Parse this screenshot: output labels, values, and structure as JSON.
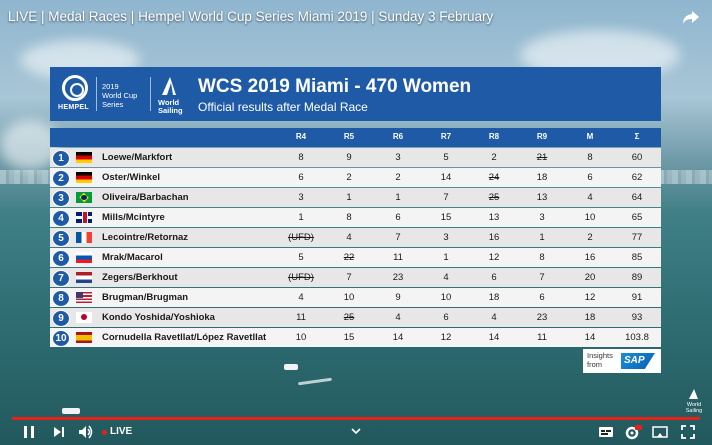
{
  "video": {
    "title": "LIVE | Medal Races | Hempel World Cup Series Miami 2019 | Sunday 3 February"
  },
  "header": {
    "hempel_label": "HEMPEL",
    "worldcup_line1": "2019",
    "worldcup_line2": "World Cup",
    "worldcup_line3": "Series",
    "worldsailing_line1": "World",
    "worldsailing_line2": "Sailing",
    "title": "WCS 2019 Miami - 470 Women",
    "subtitle": "Official results after Medal Race"
  },
  "table": {
    "columns": [
      "R4",
      "R5",
      "R6",
      "R7",
      "R8",
      "R9",
      "M",
      "Σ"
    ],
    "rows": [
      {
        "rank": "1",
        "flag": "de",
        "name": "Loewe/Markfort",
        "cells": [
          {
            "v": "8"
          },
          {
            "v": "9"
          },
          {
            "v": "3"
          },
          {
            "v": "5"
          },
          {
            "v": "2"
          },
          {
            "v": "21",
            "struck": true
          },
          {
            "v": "8"
          },
          {
            "v": "60"
          }
        ]
      },
      {
        "rank": "2",
        "flag": "de",
        "name": "Oster/Winkel",
        "cells": [
          {
            "v": "6"
          },
          {
            "v": "2"
          },
          {
            "v": "2"
          },
          {
            "v": "14"
          },
          {
            "v": "24",
            "struck": true
          },
          {
            "v": "18"
          },
          {
            "v": "6"
          },
          {
            "v": "62"
          }
        ]
      },
      {
        "rank": "3",
        "flag": "br",
        "name": "Oliveira/Barbachan",
        "cells": [
          {
            "v": "3"
          },
          {
            "v": "1"
          },
          {
            "v": "1"
          },
          {
            "v": "7"
          },
          {
            "v": "25",
            "struck": true
          },
          {
            "v": "13"
          },
          {
            "v": "4"
          },
          {
            "v": "64"
          }
        ]
      },
      {
        "rank": "4",
        "flag": "gb",
        "name": "Mills/Mcintyre",
        "cells": [
          {
            "v": "1"
          },
          {
            "v": "8"
          },
          {
            "v": "6"
          },
          {
            "v": "15"
          },
          {
            "v": "13"
          },
          {
            "v": "3"
          },
          {
            "v": "10"
          },
          {
            "v": "65"
          }
        ]
      },
      {
        "rank": "5",
        "flag": "fr",
        "name": "Lecointre/Retornaz",
        "cells": [
          {
            "v": "(UFD)",
            "struck": true
          },
          {
            "v": "4"
          },
          {
            "v": "7"
          },
          {
            "v": "3"
          },
          {
            "v": "16"
          },
          {
            "v": "1"
          },
          {
            "v": "2"
          },
          {
            "v": "77"
          }
        ]
      },
      {
        "rank": "6",
        "flag": "si",
        "name": "Mrak/Macarol",
        "cells": [
          {
            "v": "5"
          },
          {
            "v": "22",
            "struck": true
          },
          {
            "v": "11"
          },
          {
            "v": "1"
          },
          {
            "v": "12"
          },
          {
            "v": "8"
          },
          {
            "v": "16"
          },
          {
            "v": "85"
          }
        ]
      },
      {
        "rank": "7",
        "flag": "nl",
        "name": "Zegers/Berkhout",
        "cells": [
          {
            "v": "(UFD)",
            "struck": true
          },
          {
            "v": "7"
          },
          {
            "v": "23"
          },
          {
            "v": "4"
          },
          {
            "v": "6"
          },
          {
            "v": "7"
          },
          {
            "v": "20"
          },
          {
            "v": "89"
          }
        ]
      },
      {
        "rank": "8",
        "flag": "us",
        "name": "Brugman/Brugman",
        "cells": [
          {
            "v": "4"
          },
          {
            "v": "10"
          },
          {
            "v": "9"
          },
          {
            "v": "10"
          },
          {
            "v": "18"
          },
          {
            "v": "6"
          },
          {
            "v": "12"
          },
          {
            "v": "91"
          }
        ]
      },
      {
        "rank": "9",
        "flag": "jp",
        "name": "Kondo Yoshida/Yoshioka",
        "cells": [
          {
            "v": "11"
          },
          {
            "v": "25",
            "struck": true
          },
          {
            "v": "4"
          },
          {
            "v": "6"
          },
          {
            "v": "4"
          },
          {
            "v": "23"
          },
          {
            "v": "18"
          },
          {
            "v": "93"
          }
        ]
      },
      {
        "rank": "10",
        "flag": "es",
        "name": "Cornudella Ravetllat/López Ravetllat",
        "cells": [
          {
            "v": "10"
          },
          {
            "v": "15"
          },
          {
            "v": "14"
          },
          {
            "v": "12"
          },
          {
            "v": "14"
          },
          {
            "v": "11"
          },
          {
            "v": "14"
          },
          {
            "v": "103.8"
          }
        ]
      }
    ]
  },
  "sponsor": {
    "line1": "Insights",
    "line2": "from",
    "logo": "SAP"
  },
  "corner_logo": {
    "line1": "World",
    "line2": "Sailing"
  },
  "player": {
    "live_label": "LIVE",
    "accent_color": "#e62117",
    "header_color": "#1f5aa6"
  }
}
